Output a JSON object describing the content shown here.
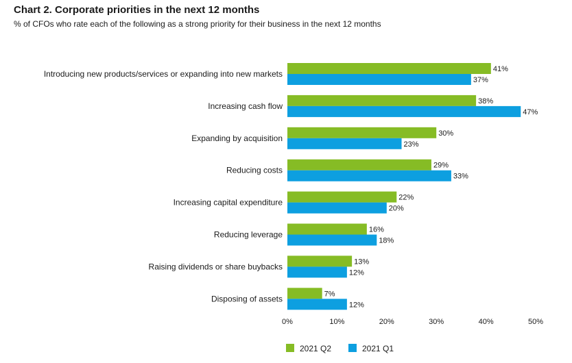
{
  "title": "Chart 2. Corporate priorities in the next 12 months",
  "subtitle": "% of CFOs who rate each of the following as a strong priority for their business in the next 12 months",
  "chart_data": {
    "type": "bar",
    "orientation": "horizontal",
    "categories": [
      "Introducing new products/services or expanding into new markets",
      "Increasing cash flow",
      "Expanding by acquisition",
      "Reducing costs",
      "Increasing capital expenditure",
      "Reducing leverage",
      "Raising dividends or share buybacks",
      "Disposing of assets"
    ],
    "series": [
      {
        "name": "2021 Q2",
        "color": "#86bc25",
        "values": [
          41,
          38,
          30,
          29,
          22,
          16,
          13,
          7
        ]
      },
      {
        "name": "2021 Q1",
        "color": "#0d9fe0",
        "values": [
          37,
          47,
          23,
          33,
          20,
          18,
          12,
          12
        ]
      }
    ],
    "value_suffix": "%",
    "xlim": [
      0,
      50
    ],
    "xticks": [
      "0%",
      "10%",
      "20%",
      "30%",
      "40%",
      "50%"
    ],
    "legend_position": "bottom",
    "grid": false
  }
}
